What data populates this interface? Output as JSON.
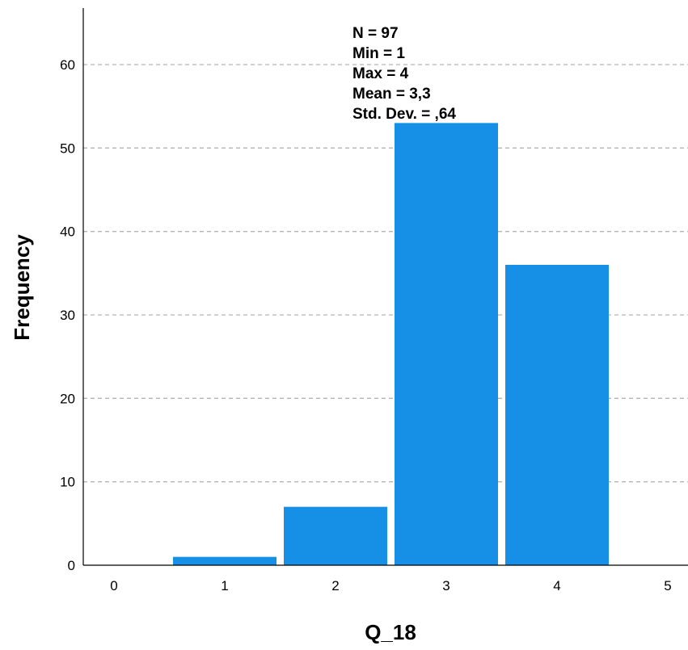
{
  "chart_data": {
    "type": "bar",
    "title": "",
    "xlabel": "Q_18",
    "ylabel": "Frequency",
    "categories": [
      "0",
      "1",
      "2",
      "3",
      "4",
      "5"
    ],
    "x": [
      0,
      1,
      2,
      3,
      4,
      5
    ],
    "values": [
      0,
      1,
      7,
      53,
      36,
      0
    ],
    "ylim": [
      0,
      66
    ],
    "xlim": [
      -0.2,
      5.2
    ],
    "yticks": [
      "0",
      "10",
      "20",
      "30",
      "40",
      "50",
      "60"
    ],
    "grid": true,
    "bar_color": "#1590e6",
    "stats": [
      "N = 97",
      "Min = 1",
      "Max = 4",
      "Mean = 3,3",
      "Std. Dev. = ,64"
    ]
  }
}
